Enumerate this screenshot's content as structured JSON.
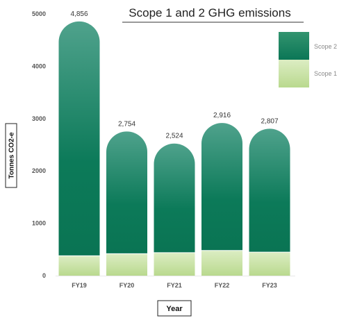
{
  "chart_data": {
    "type": "bar",
    "stacked": true,
    "title": "Scope 1 and 2 GHG emissions",
    "xlabel": "Year",
    "ylabel": "Tonnes CO2-e",
    "categories": [
      "FY19",
      "FY20",
      "FY21",
      "FY22",
      "FY23"
    ],
    "series": [
      {
        "name": "Scope 1",
        "values": [
          380,
          420,
          440,
          480,
          450
        ],
        "color": "#c9e3a5"
      },
      {
        "name": "Scope 2",
        "values": [
          4476,
          2334,
          2084,
          2436,
          2357
        ],
        "color": "#0f7a5c"
      }
    ],
    "totals": [
      4856,
      2754,
      2524,
      2916,
      2807
    ],
    "total_labels": [
      "4,856",
      "2,754",
      "2,524",
      "2,916",
      "2,807"
    ],
    "ylim": [
      0,
      5000
    ],
    "yticks": [
      0,
      1000,
      2000,
      3000,
      4000,
      5000
    ],
    "grid": false,
    "legend_position": "top-right"
  }
}
